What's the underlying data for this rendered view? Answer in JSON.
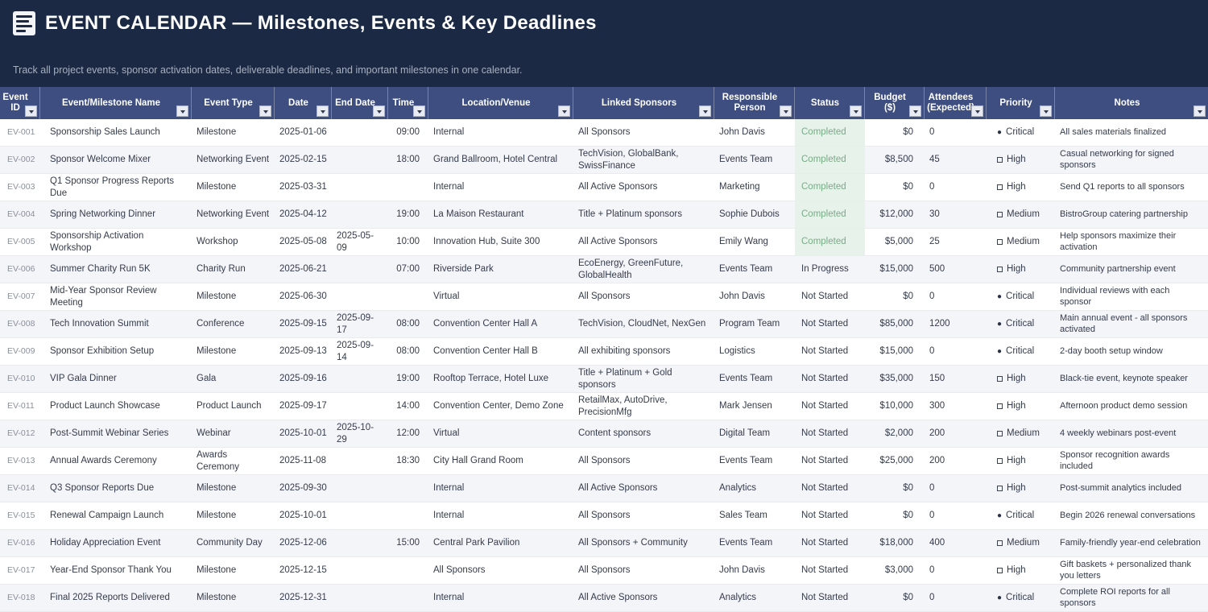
{
  "header": {
    "title": "EVENT CALENDAR — Milestones, Events & Key Deadlines",
    "subtitle": "Track all project events, sponsor activation dates, deliverable deadlines, and important milestones in one calendar.",
    "icon": "document-list-icon"
  },
  "colors": {
    "banner_bg": "#1b2944",
    "table_header_bg": "#3e4e80",
    "row_stripe": "#f3f5f9",
    "row_border": "#e9ebf0",
    "completed_bg": "#e7f3ea",
    "completed_text": "#79aa87",
    "body_text": "#343b4a",
    "id_text": "#8a9099"
  },
  "table": {
    "columns": [
      {
        "id": "id",
        "label": "Event ID"
      },
      {
        "id": "name",
        "label": "Event/Milestone Name"
      },
      {
        "id": "type",
        "label": "Event Type"
      },
      {
        "id": "date",
        "label": "Date"
      },
      {
        "id": "end_date",
        "label": "End Date"
      },
      {
        "id": "time",
        "label": "Time"
      },
      {
        "id": "location",
        "label": "Location/Venue"
      },
      {
        "id": "sponsors",
        "label": "Linked Sponsors"
      },
      {
        "id": "person",
        "label": "Responsible Person"
      },
      {
        "id": "status",
        "label": "Status"
      },
      {
        "id": "budget",
        "label": "Budget ($)"
      },
      {
        "id": "attendees",
        "label": "Attendees (Expected)"
      },
      {
        "id": "priority",
        "label": "Priority"
      },
      {
        "id": "notes",
        "label": "Notes"
      }
    ],
    "rows": [
      {
        "id": "EV-001",
        "name": "Sponsorship Sales Launch",
        "type": "Milestone",
        "date": "2025-01-06",
        "end_date": "",
        "time": "09:00",
        "location": "Internal",
        "sponsors": "All Sponsors",
        "person": "John Davis",
        "status": "Completed",
        "budget": "$0",
        "attendees": "0",
        "priority": "Critical",
        "notes": "All sales materials finalized"
      },
      {
        "id": "EV-002",
        "name": "Sponsor Welcome Mixer",
        "type": "Networking Event",
        "date": "2025-02-15",
        "end_date": "",
        "time": "18:00",
        "location": "Grand Ballroom, Hotel Central",
        "sponsors": "TechVision, GlobalBank, SwissFinance",
        "person": "Events Team",
        "status": "Completed",
        "budget": "$8,500",
        "attendees": "45",
        "priority": "High",
        "notes": "Casual networking for signed sponsors"
      },
      {
        "id": "EV-003",
        "name": "Q1 Sponsor Progress Reports Due",
        "type": "Milestone",
        "date": "2025-03-31",
        "end_date": "",
        "time": "",
        "location": "Internal",
        "sponsors": "All Active Sponsors",
        "person": "Marketing",
        "status": "Completed",
        "budget": "$0",
        "attendees": "0",
        "priority": "High",
        "notes": "Send Q1 reports to all sponsors"
      },
      {
        "id": "EV-004",
        "name": "Spring Networking Dinner",
        "type": "Networking Event",
        "date": "2025-04-12",
        "end_date": "",
        "time": "19:00",
        "location": "La Maison Restaurant",
        "sponsors": "Title + Platinum sponsors",
        "person": "Sophie Dubois",
        "status": "Completed",
        "budget": "$12,000",
        "attendees": "30",
        "priority": "Medium",
        "notes": "BistroGroup catering partnership"
      },
      {
        "id": "EV-005",
        "name": "Sponsorship Activation Workshop",
        "type": "Workshop",
        "date": "2025-05-08",
        "end_date": "2025-05-09",
        "time": "10:00",
        "location": "Innovation Hub, Suite 300",
        "sponsors": "All Active Sponsors",
        "person": "Emily Wang",
        "status": "Completed",
        "budget": "$5,000",
        "attendees": "25",
        "priority": "Medium",
        "notes": "Help sponsors maximize their activation"
      },
      {
        "id": "EV-006",
        "name": "Summer Charity Run 5K",
        "type": "Charity Run",
        "date": "2025-06-21",
        "end_date": "",
        "time": "07:00",
        "location": "Riverside Park",
        "sponsors": "EcoEnergy, GreenFuture, GlobalHealth",
        "person": "Events Team",
        "status": "In Progress",
        "budget": "$15,000",
        "attendees": "500",
        "priority": "High",
        "notes": "Community partnership event"
      },
      {
        "id": "EV-007",
        "name": "Mid-Year Sponsor Review Meeting",
        "type": "Milestone",
        "date": "2025-06-30",
        "end_date": "",
        "time": "",
        "location": "Virtual",
        "sponsors": "All Sponsors",
        "person": "John Davis",
        "status": "Not Started",
        "budget": "$0",
        "attendees": "0",
        "priority": "Critical",
        "notes": "Individual reviews with each sponsor"
      },
      {
        "id": "EV-008",
        "name": "Tech Innovation Summit",
        "type": "Conference",
        "date": "2025-09-15",
        "end_date": "2025-09-17",
        "time": "08:00",
        "location": "Convention Center Hall A",
        "sponsors": "TechVision, CloudNet, NexGen",
        "person": "Program Team",
        "status": "Not Started",
        "budget": "$85,000",
        "attendees": "1200",
        "priority": "Critical",
        "notes": "Main annual event - all sponsors activated"
      },
      {
        "id": "EV-009",
        "name": "Sponsor Exhibition Setup",
        "type": "Milestone",
        "date": "2025-09-13",
        "end_date": "2025-09-14",
        "time": "08:00",
        "location": "Convention Center Hall B",
        "sponsors": "All exhibiting sponsors",
        "person": "Logistics",
        "status": "Not Started",
        "budget": "$15,000",
        "attendees": "0",
        "priority": "Critical",
        "notes": "2-day booth setup window"
      },
      {
        "id": "EV-010",
        "name": "VIP Gala Dinner",
        "type": "Gala",
        "date": "2025-09-16",
        "end_date": "",
        "time": "19:00",
        "location": "Rooftop Terrace, Hotel Luxe",
        "sponsors": "Title + Platinum + Gold sponsors",
        "person": "Events Team",
        "status": "Not Started",
        "budget": "$35,000",
        "attendees": "150",
        "priority": "High",
        "notes": "Black-tie event, keynote speaker"
      },
      {
        "id": "EV-011",
        "name": "Product Launch Showcase",
        "type": "Product Launch",
        "date": "2025-09-17",
        "end_date": "",
        "time": "14:00",
        "location": "Convention Center, Demo Zone",
        "sponsors": "RetailMax, AutoDrive, PrecisionMfg",
        "person": "Mark Jensen",
        "status": "Not Started",
        "budget": "$10,000",
        "attendees": "300",
        "priority": "High",
        "notes": "Afternoon product demo session"
      },
      {
        "id": "EV-012",
        "name": "Post-Summit Webinar Series",
        "type": "Webinar",
        "date": "2025-10-01",
        "end_date": "2025-10-29",
        "time": "12:00",
        "location": "Virtual",
        "sponsors": "Content sponsors",
        "person": "Digital Team",
        "status": "Not Started",
        "budget": "$2,000",
        "attendees": "200",
        "priority": "Medium",
        "notes": "4 weekly webinars post-event"
      },
      {
        "id": "EV-013",
        "name": "Annual Awards Ceremony",
        "type": "Awards Ceremony",
        "date": "2025-11-08",
        "end_date": "",
        "time": "18:30",
        "location": "City Hall Grand Room",
        "sponsors": "All Sponsors",
        "person": "Events Team",
        "status": "Not Started",
        "budget": "$25,000",
        "attendees": "200",
        "priority": "High",
        "notes": "Sponsor recognition awards included"
      },
      {
        "id": "EV-014",
        "name": "Q3 Sponsor Reports Due",
        "type": "Milestone",
        "date": "2025-09-30",
        "end_date": "",
        "time": "",
        "location": "Internal",
        "sponsors": "All Active Sponsors",
        "person": "Analytics",
        "status": "Not Started",
        "budget": "$0",
        "attendees": "0",
        "priority": "High",
        "notes": "Post-summit analytics included"
      },
      {
        "id": "EV-015",
        "name": "Renewal Campaign Launch",
        "type": "Milestone",
        "date": "2025-10-01",
        "end_date": "",
        "time": "",
        "location": "Internal",
        "sponsors": "All Sponsors",
        "person": "Sales Team",
        "status": "Not Started",
        "budget": "$0",
        "attendees": "0",
        "priority": "Critical",
        "notes": "Begin 2026 renewal conversations"
      },
      {
        "id": "EV-016",
        "name": "Holiday Appreciation Event",
        "type": "Community Day",
        "date": "2025-12-06",
        "end_date": "",
        "time": "15:00",
        "location": "Central Park Pavilion",
        "sponsors": "All Sponsors + Community",
        "person": "Events Team",
        "status": "Not Started",
        "budget": "$18,000",
        "attendees": "400",
        "priority": "Medium",
        "notes": "Family-friendly year-end celebration"
      },
      {
        "id": "EV-017",
        "name": "Year-End Sponsor Thank You",
        "type": "Milestone",
        "date": "2025-12-15",
        "end_date": "",
        "time": "",
        "location": "All Sponsors",
        "sponsors": "All Sponsors",
        "person": "John Davis",
        "status": "Not Started",
        "budget": "$3,000",
        "attendees": "0",
        "priority": "High",
        "notes": "Gift baskets + personalized thank you letters"
      },
      {
        "id": "EV-018",
        "name": "Final 2025 Reports Delivered",
        "type": "Milestone",
        "date": "2025-12-31",
        "end_date": "",
        "time": "",
        "location": "Internal",
        "sponsors": "All Active Sponsors",
        "person": "Analytics",
        "status": "Not Started",
        "budget": "$0",
        "attendees": "0",
        "priority": "Critical",
        "notes": "Complete ROI reports for all sponsors"
      }
    ]
  }
}
